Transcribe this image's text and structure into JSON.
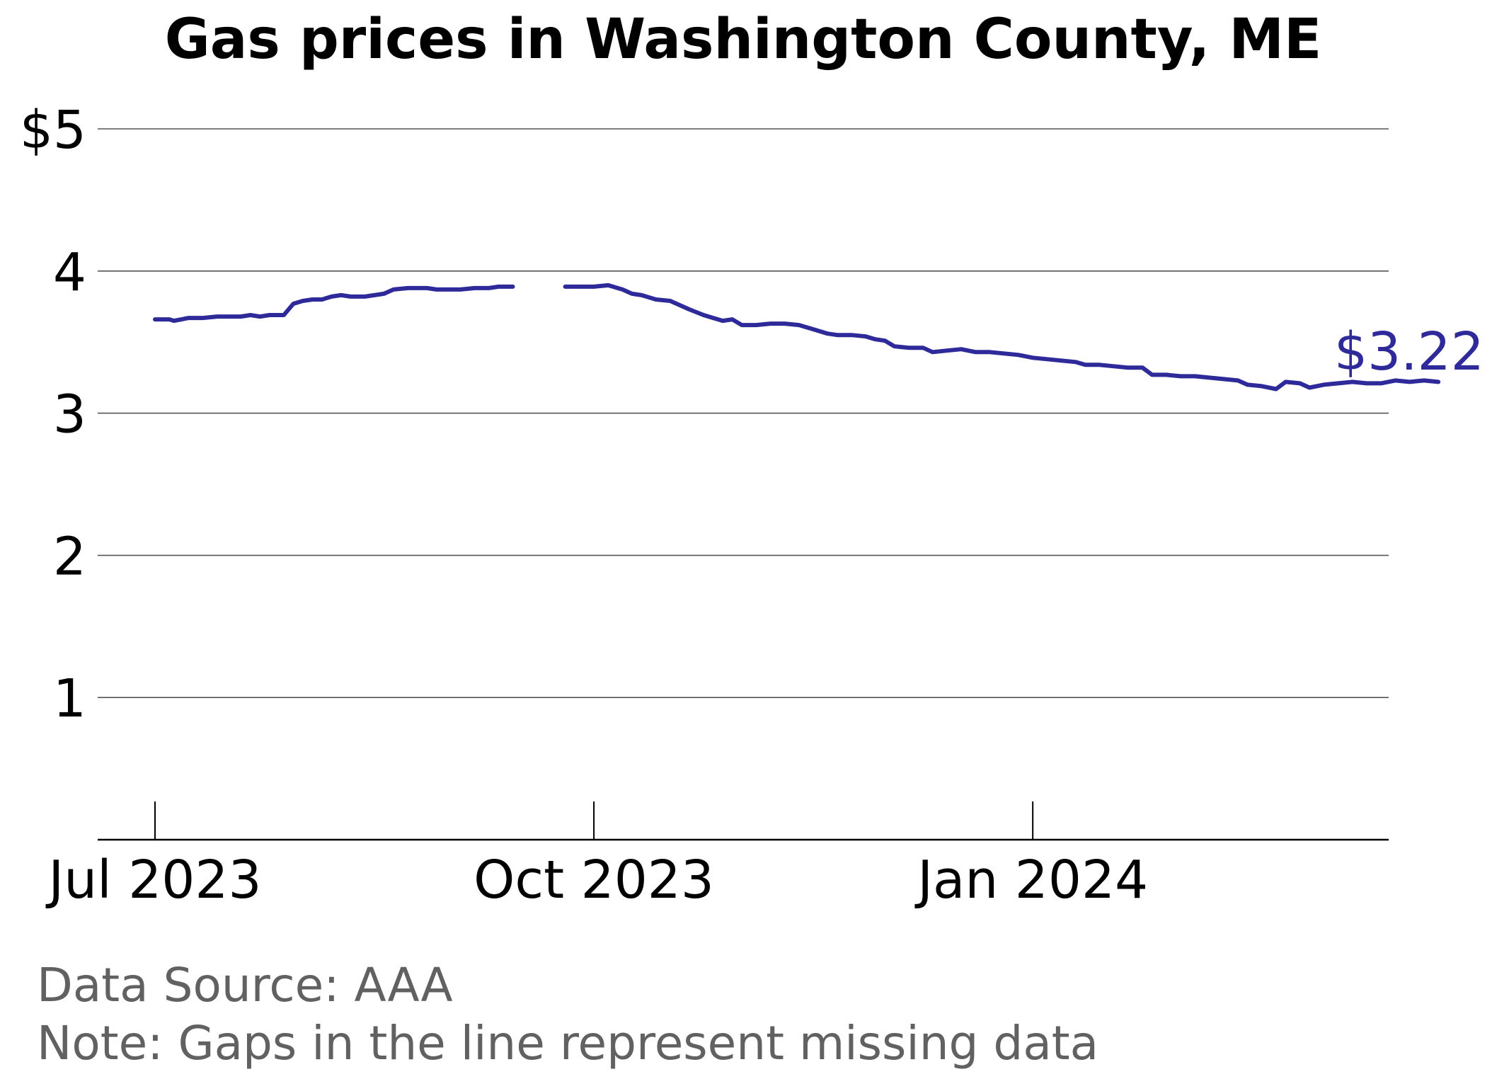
{
  "title": "Gas prices in Washington County, ME",
  "footer": {
    "source": "Data Source: AAA",
    "note": "Note: Gaps in the line represent missing data"
  },
  "colors": {
    "line": "#2e2a9a",
    "axis": "#000000",
    "grid": "#555555",
    "footer_text": "#616161"
  },
  "chart_data": {
    "type": "line",
    "title": "Gas prices in Washington County, ME",
    "xlabel": "",
    "ylabel": "",
    "ylim": [
      0,
      5
    ],
    "xlim": [
      "2023-06-23",
      "2024-03-26"
    ],
    "grid": "horizontal",
    "yticks": [
      {
        "value": 1,
        "label": "1"
      },
      {
        "value": 2,
        "label": "2"
      },
      {
        "value": 3,
        "label": "3"
      },
      {
        "value": 4,
        "label": "4"
      },
      {
        "value": 5,
        "label": "$5"
      }
    ],
    "xticks": [
      {
        "date": "2023-07-01",
        "label": "Jul 2023"
      },
      {
        "date": "2023-10-01",
        "label": "Oct 2023"
      },
      {
        "date": "2024-01-01",
        "label": "Jan 2024"
      }
    ],
    "end_label": "$3.22",
    "series": [
      {
        "segments": [
          [
            [
              "2023-07-01",
              3.66
            ],
            [
              "2023-07-04",
              3.66
            ],
            [
              "2023-07-05",
              3.65
            ],
            [
              "2023-07-08",
              3.67
            ],
            [
              "2023-07-11",
              3.67
            ],
            [
              "2023-07-14",
              3.68
            ],
            [
              "2023-07-17",
              3.68
            ],
            [
              "2023-07-19",
              3.68
            ],
            [
              "2023-07-21",
              3.69
            ],
            [
              "2023-07-23",
              3.68
            ],
            [
              "2023-07-25",
              3.69
            ],
            [
              "2023-07-28",
              3.69
            ],
            [
              "2023-07-30",
              3.77
            ],
            [
              "2023-08-01",
              3.79
            ],
            [
              "2023-08-03",
              3.8
            ],
            [
              "2023-08-05",
              3.8
            ],
            [
              "2023-08-07",
              3.82
            ],
            [
              "2023-08-09",
              3.83
            ],
            [
              "2023-08-11",
              3.82
            ],
            [
              "2023-08-14",
              3.82
            ],
            [
              "2023-08-16",
              3.83
            ],
            [
              "2023-08-18",
              3.84
            ],
            [
              "2023-08-20",
              3.87
            ],
            [
              "2023-08-23",
              3.88
            ],
            [
              "2023-08-25",
              3.88
            ],
            [
              "2023-08-27",
              3.88
            ],
            [
              "2023-08-29",
              3.87
            ],
            [
              "2023-08-31",
              3.87
            ],
            [
              "2023-09-03",
              3.87
            ],
            [
              "2023-09-06",
              3.88
            ],
            [
              "2023-09-09",
              3.88
            ],
            [
              "2023-09-11",
              3.89
            ],
            [
              "2023-09-14",
              3.89
            ]
          ],
          [
            [
              "2023-09-25",
              3.89
            ],
            [
              "2023-09-28",
              3.89
            ],
            [
              "2023-10-01",
              3.89
            ],
            [
              "2023-10-04",
              3.9
            ],
            [
              "2023-10-07",
              3.87
            ],
            [
              "2023-10-09",
              3.84
            ],
            [
              "2023-10-11",
              3.83
            ],
            [
              "2023-10-14",
              3.8
            ],
            [
              "2023-10-17",
              3.79
            ],
            [
              "2023-10-19",
              3.76
            ],
            [
              "2023-10-21",
              3.73
            ],
            [
              "2023-10-24",
              3.69
            ],
            [
              "2023-10-26",
              3.67
            ],
            [
              "2023-10-28",
              3.65
            ],
            [
              "2023-10-30",
              3.66
            ],
            [
              "2023-11-01",
              3.62
            ],
            [
              "2023-11-04",
              3.62
            ],
            [
              "2023-11-07",
              3.63
            ],
            [
              "2023-11-10",
              3.63
            ],
            [
              "2023-11-13",
              3.62
            ],
            [
              "2023-11-16",
              3.59
            ],
            [
              "2023-11-19",
              3.56
            ],
            [
              "2023-11-21",
              3.55
            ],
            [
              "2023-11-24",
              3.55
            ],
            [
              "2023-11-27",
              3.54
            ],
            [
              "2023-11-29",
              3.52
            ],
            [
              "2023-12-01",
              3.51
            ],
            [
              "2023-12-03",
              3.47
            ],
            [
              "2023-12-06",
              3.46
            ],
            [
              "2023-12-09",
              3.46
            ],
            [
              "2023-12-11",
              3.43
            ],
            [
              "2023-12-14",
              3.44
            ],
            [
              "2023-12-17",
              3.45
            ],
            [
              "2023-12-20",
              3.43
            ],
            [
              "2023-12-23",
              3.43
            ],
            [
              "2023-12-26",
              3.42
            ],
            [
              "2023-12-29",
              3.41
            ],
            [
              "2024-01-01",
              3.39
            ],
            [
              "2024-01-04",
              3.38
            ],
            [
              "2024-01-07",
              3.37
            ],
            [
              "2024-01-10",
              3.36
            ],
            [
              "2024-01-12",
              3.34
            ],
            [
              "2024-01-15",
              3.34
            ],
            [
              "2024-01-18",
              3.33
            ],
            [
              "2024-01-21",
              3.32
            ],
            [
              "2024-01-24",
              3.32
            ],
            [
              "2024-01-26",
              3.27
            ],
            [
              "2024-01-29",
              3.27
            ],
            [
              "2024-02-01",
              3.26
            ],
            [
              "2024-02-04",
              3.26
            ],
            [
              "2024-02-07",
              3.25
            ],
            [
              "2024-02-10",
              3.24
            ],
            [
              "2024-02-13",
              3.23
            ],
            [
              "2024-02-15",
              3.2
            ],
            [
              "2024-02-18",
              3.19
            ],
            [
              "2024-02-21",
              3.17
            ],
            [
              "2024-02-23",
              3.22
            ],
            [
              "2024-02-26",
              3.21
            ],
            [
              "2024-02-28",
              3.18
            ],
            [
              "2024-03-02",
              3.2
            ],
            [
              "2024-03-05",
              3.21
            ],
            [
              "2024-03-08",
              3.22
            ],
            [
              "2024-03-11",
              3.21
            ],
            [
              "2024-03-14",
              3.21
            ],
            [
              "2024-03-17",
              3.23
            ],
            [
              "2024-03-20",
              3.22
            ],
            [
              "2024-03-23",
              3.23
            ],
            [
              "2024-03-26",
              3.22
            ]
          ]
        ]
      }
    ]
  }
}
